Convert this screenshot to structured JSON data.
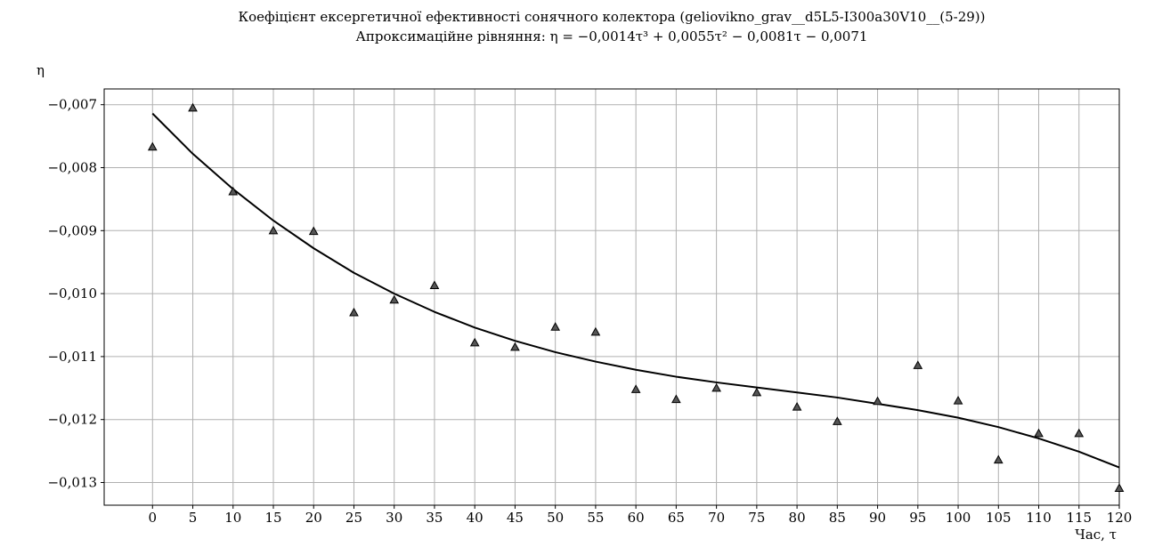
{
  "chart_data": {
    "type": "scatter",
    "title": "Коефіцієнт ексергетичної ефективності сонячного колектора (geliovikno_grav__d5L5-I300a30V10__(5-29))",
    "subtitle": "Апроксимаційне рівняння: η = −0,0014τ³ + 0,0055τ² − 0,0081τ − 0,0071",
    "xlabel": "Час, τ",
    "ylabel": "η",
    "xlim": [
      -6,
      120
    ],
    "ylim": [
      -0.01336,
      -0.00675
    ],
    "grid": true,
    "x_ticks": [
      0,
      5,
      10,
      15,
      20,
      25,
      30,
      35,
      40,
      45,
      50,
      55,
      60,
      65,
      70,
      75,
      80,
      85,
      90,
      95,
      100,
      105,
      110,
      115,
      120
    ],
    "y_ticks": [
      -0.007,
      -0.008,
      -0.009,
      -0.01,
      -0.011,
      -0.012,
      -0.013
    ],
    "y_tick_labels": [
      "−0,007",
      "−0,008",
      "−0,009",
      "−0,010",
      "−0,011",
      "−0,012",
      "−0,013"
    ],
    "series": [
      {
        "type": "scatter",
        "marker": "triangle",
        "color": "#555555",
        "x": [
          0,
          5,
          10,
          15,
          20,
          25,
          30,
          35,
          40,
          45,
          50,
          55,
          60,
          65,
          70,
          75,
          80,
          85,
          90,
          95,
          100,
          105,
          110,
          115,
          120
        ],
        "y": [
          -0.00767,
          -0.00705,
          -0.00838,
          -0.009,
          -0.00901,
          -0.0103,
          -0.0101,
          -0.00987,
          -0.01078,
          -0.01085,
          -0.01053,
          -0.01061,
          -0.01152,
          -0.01168,
          -0.0115,
          -0.01157,
          -0.0118,
          -0.01203,
          -0.01171,
          -0.01114,
          -0.0117,
          -0.01264,
          -0.01222,
          -0.01222,
          -0.01309
        ]
      },
      {
        "type": "line",
        "color": "#000000",
        "x": [
          0,
          5,
          10,
          15,
          20,
          25,
          30,
          35,
          40,
          45,
          50,
          55,
          60,
          65,
          70,
          75,
          80,
          85,
          90,
          95,
          100,
          105,
          110,
          115,
          120
        ],
        "y": [
          -0.00714,
          -0.00778,
          -0.00834,
          -0.00884,
          -0.00928,
          -0.00967,
          -0.01,
          -0.01029,
          -0.01054,
          -0.01075,
          -0.01093,
          -0.01108,
          -0.01121,
          -0.01132,
          -0.01141,
          -0.01149,
          -0.01157,
          -0.01165,
          -0.01175,
          -0.01185,
          -0.01197,
          -0.01212,
          -0.0123,
          -0.01251,
          -0.01276
        ]
      }
    ]
  }
}
